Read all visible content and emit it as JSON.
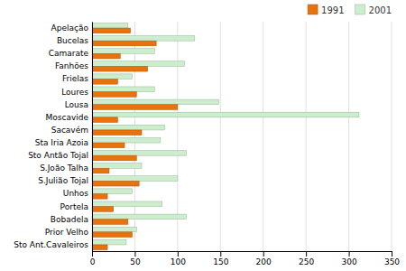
{
  "chart_data": {
    "type": "bar",
    "orientation": "horizontal",
    "categories": [
      "Apelação",
      "Bucelas",
      "Camarate",
      "Fanhões",
      "Frielas",
      "Loures",
      "Lousa",
      "Moscavide",
      "Sacavém",
      "Sta Iria Azoia",
      "Sto Antão Tojal",
      "S.João Talha",
      "S.Julião Tojal",
      "Unhos",
      "Portela",
      "Bobadela",
      "Prior Velho",
      "Sto Ant.Cavaleiros"
    ],
    "series": [
      {
        "name": "2001",
        "color": "#CCEECC",
        "values": [
          42,
          120,
          73,
          108,
          47,
          73,
          148,
          312,
          85,
          80,
          110,
          58,
          100,
          47,
          82,
          110,
          52,
          40
        ]
      },
      {
        "name": "1991",
        "color": "#E8720C",
        "values": [
          45,
          75,
          33,
          65,
          30,
          52,
          100,
          30,
          58,
          38,
          52,
          20,
          55,
          18,
          25,
          42,
          47,
          18
        ]
      }
    ],
    "xlim": [
      0,
      350
    ],
    "xticks": [
      0,
      50,
      100,
      150,
      200,
      250,
      300,
      350
    ],
    "grid": true,
    "legend": "upper right"
  }
}
